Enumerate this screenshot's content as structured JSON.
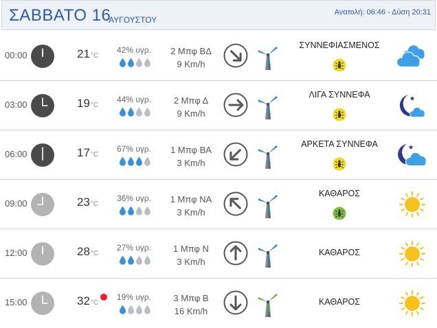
{
  "header": {
    "day": "ΣΑΒΒΑΤΟ 16",
    "month": "ΑΥΓΟΥΣΤΟΥ",
    "sun_times": "Ανατολή: 06:46  - Δύση 20:31"
  },
  "colors": {
    "accent": "#2b5aa8",
    "drop_filled": "#3b8fd8",
    "drop_empty": "#b9bec5",
    "sun": "#f6c21c",
    "moon": "#2d3b86",
    "cloud": "#3ea0e6",
    "bug_yellow": "#f4dc22",
    "bug_green": "#7bc043",
    "red_dot": "#e8202a"
  },
  "rows": [
    {
      "time": "00:00",
      "clock": "dark",
      "temp": "21",
      "unit": "°C",
      "hot": false,
      "humidity": "42% υγρ.",
      "drops": 2,
      "wind_force": "2 Μπφ ΒΔ",
      "wind_speed": "9 Km/h",
      "direction_icon": "arrow-down-right",
      "turbine": "blue",
      "condition": "ΣΥΝΝΕΦΙΑΣΜΕΝΟΣ",
      "bug": "yellow",
      "weather_icon": "clouds"
    },
    {
      "time": "03:00",
      "clock": "dark",
      "temp": "19",
      "unit": "°C",
      "hot": false,
      "humidity": "44% υγρ.",
      "drops": 2,
      "wind_force": "2 Μπφ Δ",
      "wind_speed": "9 Km/h",
      "direction_icon": "arrow-right",
      "turbine": "blue",
      "condition": "ΛΙΓΑ ΣΥΝΝΕΦΑ",
      "bug": "yellow",
      "weather_icon": "moon"
    },
    {
      "time": "06:00",
      "clock": "dark",
      "temp": "17",
      "unit": "°C",
      "hot": false,
      "humidity": "67% υγρ.",
      "drops": 3,
      "wind_force": "1 Μπφ ΒΑ",
      "wind_speed": "3 Km/h",
      "direction_icon": "arrow-down-left",
      "turbine": "blue",
      "condition": "ΑΡΚΕΤΑ ΣΥΝΝΕΦΑ",
      "bug": "yellow",
      "weather_icon": "moon-cloud"
    },
    {
      "time": "09:00",
      "clock": "light",
      "temp": "23",
      "unit": "°C",
      "hot": false,
      "humidity": "36% υγρ.",
      "drops": 2,
      "wind_force": "1 Μπφ ΝΑ",
      "wind_speed": "3 Km/h",
      "direction_icon": "arrow-up-left",
      "turbine": "blue",
      "condition": "ΚΑΘΑΡΟΣ",
      "bug": "green",
      "weather_icon": "sun"
    },
    {
      "time": "12:00",
      "clock": "light",
      "temp": "28",
      "unit": "°C",
      "hot": false,
      "humidity": "27% υγρ.",
      "drops": 2,
      "wind_force": "1 Μπφ Ν",
      "wind_speed": "3 Km/h",
      "direction_icon": "arrow-up",
      "turbine": "blue",
      "condition": "ΚΑΘΑΡΟΣ",
      "bug": "",
      "weather_icon": "sun"
    },
    {
      "time": "15:00",
      "clock": "light",
      "temp": "32",
      "unit": "°C",
      "hot": true,
      "humidity": "19% υγρ.",
      "drops": 1,
      "wind_force": "3 Μπφ Β",
      "wind_speed": "16 Km/h",
      "direction_icon": "arrow-down",
      "turbine": "green",
      "condition": "ΚΑΘΑΡΟΣ",
      "bug": "",
      "weather_icon": "sun"
    }
  ]
}
